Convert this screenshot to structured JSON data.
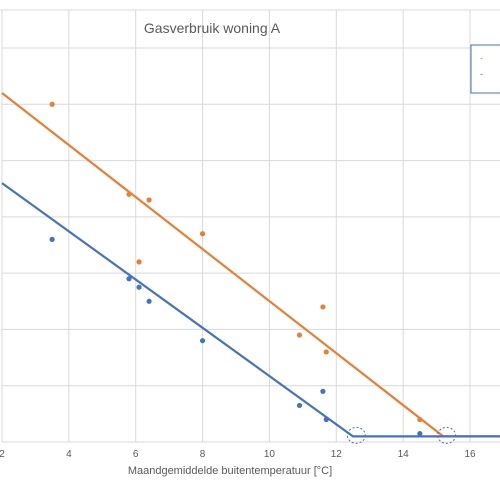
{
  "chart_data": {
    "type": "scatter",
    "title": "Gasverbruik woning A",
    "xlabel": "Maandgemiddelde buitentemperatuur [°C]",
    "ylabel": "",
    "xlim": [
      2,
      18
    ],
    "ylim": [
      0,
      7.2
    ],
    "x_ticks": [
      "2",
      "4",
      "6",
      "8",
      "10",
      "12",
      "14",
      "16"
    ],
    "y_gridlines": [
      1,
      2,
      3,
      4,
      5,
      6,
      7
    ],
    "grid": true,
    "legend": {
      "position": "top-right",
      "entries": [
        "-",
        "-"
      ]
    },
    "series": [
      {
        "color": "#ED7D31",
        "points": [
          {
            "x": 3.5,
            "y": 6.0
          },
          {
            "x": 5.8,
            "y": 4.4
          },
          {
            "x": 6.4,
            "y": 4.3
          },
          {
            "x": 6.1,
            "y": 3.2
          },
          {
            "x": 8.0,
            "y": 3.7
          },
          {
            "x": 10.9,
            "y": 1.9
          },
          {
            "x": 11.6,
            "y": 2.4
          },
          {
            "x": 11.7,
            "y": 1.6
          },
          {
            "x": 14.5,
            "y": 0.4
          }
        ],
        "fit_line": [
          {
            "x": 2,
            "y": 6.2
          },
          {
            "x": 15.2,
            "y": 0.1
          },
          {
            "x": 18,
            "y": 0.1
          }
        ]
      },
      {
        "color": "#4472C4",
        "points": [
          {
            "x": 3.5,
            "y": 3.6
          },
          {
            "x": 5.8,
            "y": 2.9
          },
          {
            "x": 6.1,
            "y": 2.75
          },
          {
            "x": 6.4,
            "y": 2.5
          },
          {
            "x": 8.0,
            "y": 1.8
          },
          {
            "x": 10.9,
            "y": 0.65
          },
          {
            "x": 11.6,
            "y": 0.9
          },
          {
            "x": 11.7,
            "y": 0.4
          },
          {
            "x": 14.5,
            "y": 0.15
          }
        ],
        "fit_line": [
          {
            "x": 2,
            "y": 4.6
          },
          {
            "x": 12.5,
            "y": 0.1
          },
          {
            "x": 18,
            "y": 0.1
          }
        ]
      }
    ],
    "annotations": [
      {
        "type": "dashed-circle",
        "x": 12.6,
        "y": 0.1
      },
      {
        "type": "dashed-circle",
        "x": 15.3,
        "y": 0.1
      }
    ]
  }
}
